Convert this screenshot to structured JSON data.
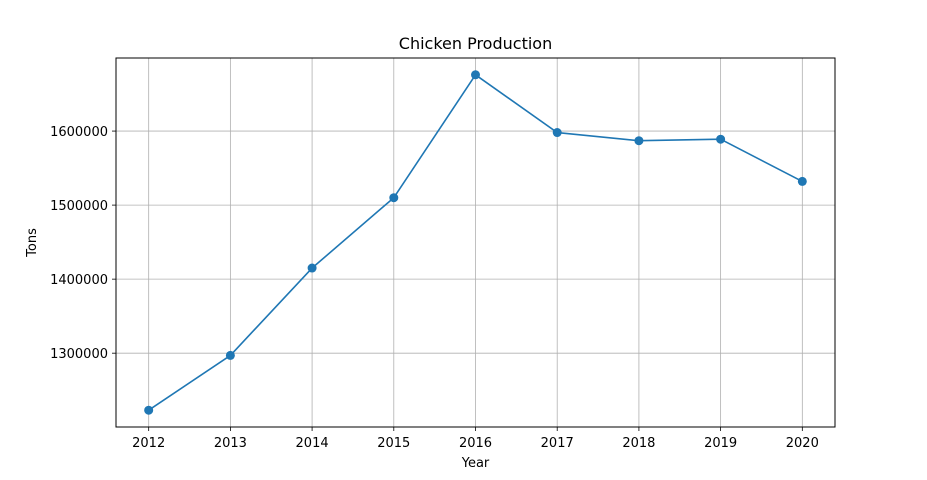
{
  "chart_data": {
    "type": "line",
    "title": "Chicken Production",
    "xlabel": "Year",
    "ylabel": "Tons",
    "x": [
      2012,
      2013,
      2014,
      2015,
      2016,
      2017,
      2018,
      2019,
      2020
    ],
    "series": [
      {
        "values": [
          1223000,
          1297000,
          1415000,
          1510000,
          1676000,
          1598000,
          1587000,
          1589000,
          1532000
        ]
      }
    ],
    "x_ticks": [
      "2012",
      "2013",
      "2014",
      "2015",
      "2016",
      "2017",
      "2018",
      "2019",
      "2020"
    ],
    "y_ticks": [
      "1300000",
      "1400000",
      "1500000",
      "1600000"
    ],
    "xlim": [
      2011.6,
      2020.4
    ],
    "ylim": [
      1200300,
      1698700
    ],
    "grid": true,
    "line_color": "#1f77b4",
    "marker": "circle"
  }
}
